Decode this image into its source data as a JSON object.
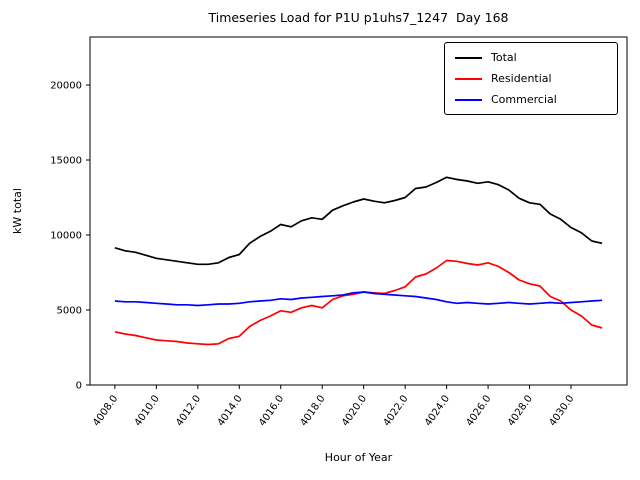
{
  "chart_data": {
    "type": "line",
    "title": "Timeseries Load for P1U p1uhs7_1247  Day 168",
    "xlabel": "Hour of Year",
    "ylabel": "kW total",
    "xlim": [
      4006.8,
      4032.7
    ],
    "ylim": [
      0,
      23200
    ],
    "xticks": [
      4008,
      4010,
      4012,
      4014,
      4016,
      4018,
      4020,
      4022,
      4024,
      4026,
      4028,
      4030
    ],
    "xtick_labels": [
      "4008.0",
      "4010.0",
      "4012.0",
      "4014.0",
      "4016.0",
      "4018.0",
      "4020.0",
      "4022.0",
      "4024.0",
      "4026.0",
      "4028.0",
      "4030.0"
    ],
    "yticks": [
      0,
      5000,
      10000,
      15000,
      20000
    ],
    "ytick_labels": [
      "0",
      "5000",
      "10000",
      "15000",
      "20000"
    ],
    "legend_position": "upper right",
    "grid": false,
    "x": [
      4008.0,
      4008.5,
      4009.0,
      4009.5,
      4010.0,
      4010.5,
      4011.0,
      4011.5,
      4012.0,
      4012.5,
      4013.0,
      4013.5,
      4014.0,
      4014.5,
      4015.0,
      4015.5,
      4016.0,
      4016.5,
      4017.0,
      4017.5,
      4018.0,
      4018.5,
      4019.0,
      4019.5,
      4020.0,
      4020.5,
      4021.0,
      4021.5,
      4022.0,
      4022.5,
      4023.0,
      4023.5,
      4024.0,
      4024.5,
      4025.0,
      4025.5,
      4026.0,
      4026.5,
      4027.0,
      4027.5,
      4028.0,
      4028.5,
      4029.0,
      4029.5,
      4030.0,
      4030.5,
      4031.0,
      4031.5
    ],
    "series": [
      {
        "name": "Total",
        "color": "#000000",
        "values": [
          9150,
          8950,
          8850,
          8650,
          8450,
          8350,
          8250,
          8150,
          8050,
          8050,
          8150,
          8500,
          8700,
          9450,
          9900,
          10250,
          10700,
          10550,
          10950,
          11150,
          11050,
          11650,
          11950,
          12200,
          12400,
          12250,
          12150,
          12300,
          12500,
          13100,
          13200,
          13500,
          13850,
          13700,
          13600,
          13450,
          13550,
          13350,
          13000,
          12450,
          12150,
          12050,
          11400,
          11050,
          10500,
          10150,
          9600,
          9450
        ]
      },
      {
        "name": "Residential",
        "color": "#ff0000",
        "values": [
          3550,
          3400,
          3300,
          3150,
          3000,
          2950,
          2900,
          2800,
          2750,
          2700,
          2750,
          3100,
          3250,
          3900,
          4300,
          4600,
          4950,
          4850,
          5150,
          5300,
          5150,
          5700,
          5950,
          6050,
          6200,
          6150,
          6100,
          6300,
          6550,
          7200,
          7400,
          7800,
          8300,
          8250,
          8100,
          8000,
          8150,
          7900,
          7500,
          7000,
          6750,
          6600,
          5900,
          5600,
          5000,
          4600,
          4000,
          3800
        ]
      },
      {
        "name": "Commercial",
        "color": "#0000ff",
        "values": [
          5600,
          5550,
          5550,
          5500,
          5450,
          5400,
          5350,
          5350,
          5300,
          5350,
          5400,
          5400,
          5450,
          5550,
          5600,
          5650,
          5750,
          5700,
          5800,
          5850,
          5900,
          5950,
          6000,
          6150,
          6200,
          6100,
          6050,
          6000,
          5950,
          5900,
          5800,
          5700,
          5550,
          5450,
          5500,
          5450,
          5400,
          5450,
          5500,
          5450,
          5400,
          5450,
          5500,
          5450,
          5500,
          5550,
          5600,
          5650
        ]
      }
    ]
  }
}
